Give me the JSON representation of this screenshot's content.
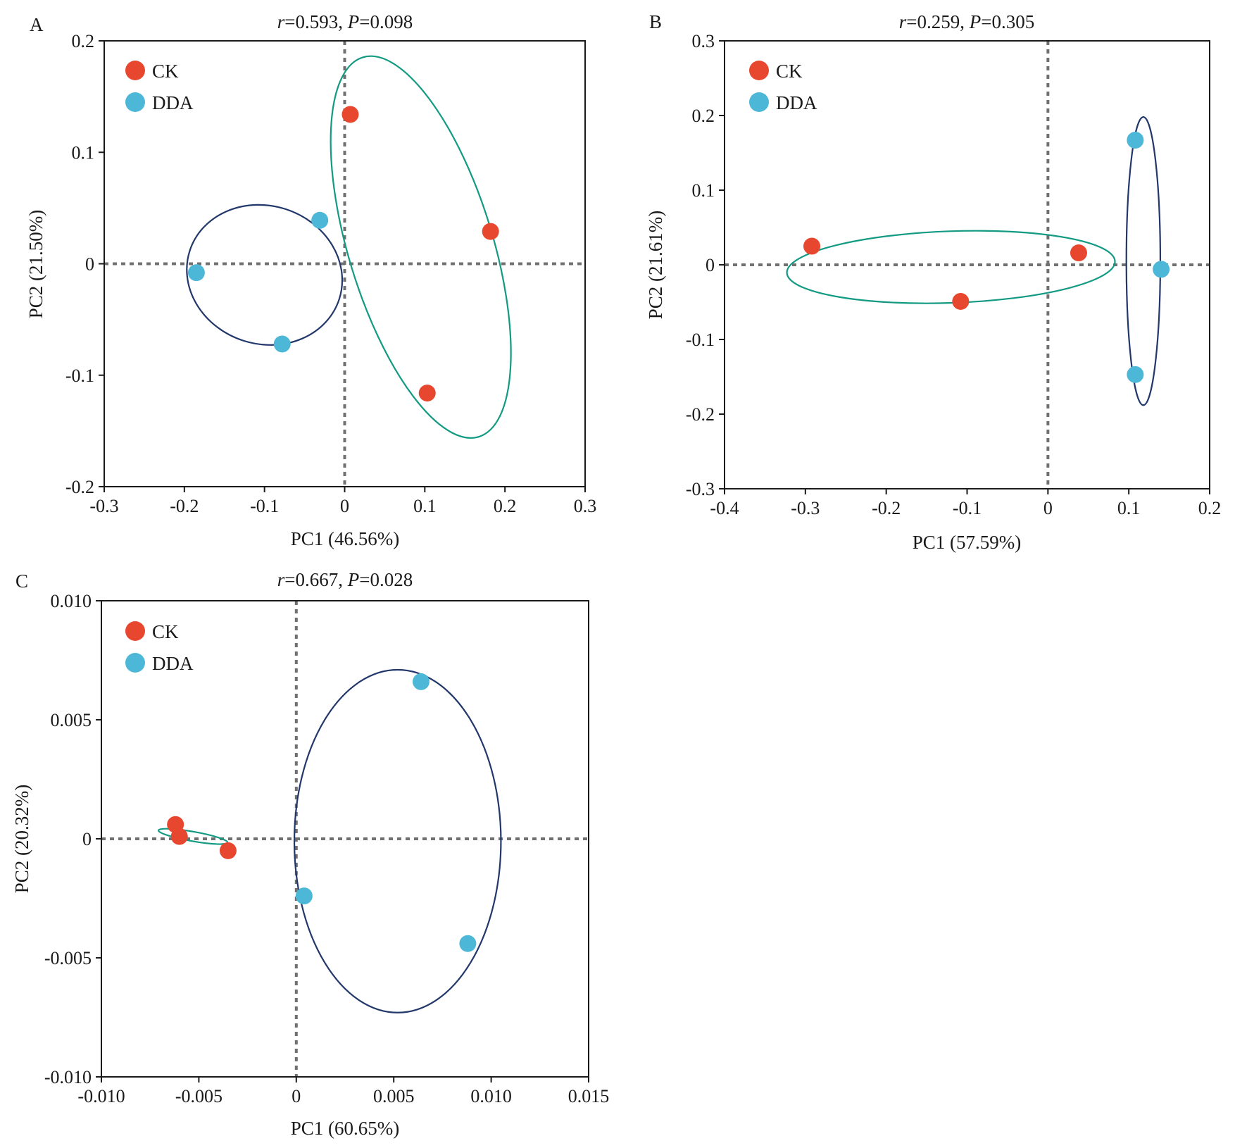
{
  "chart_data": [
    {
      "panel": "A",
      "type": "scatter",
      "title": {
        "r_label": "r",
        "r_value": "=0.593, ",
        "p_label": "P",
        "p_value": "=0.098"
      },
      "xlabel": "PC1 (46.56%)",
      "ylabel": "PC2 (21.50%)",
      "xlim": [
        -0.3,
        0.3
      ],
      "ylim": [
        -0.2,
        0.2
      ],
      "xticks": [
        -0.3,
        -0.2,
        -0.1,
        0,
        0.1,
        0.2,
        0.3
      ],
      "xtick_labels": [
        "-0.3",
        "-0.2",
        "-0.1",
        "0",
        "0.1",
        "0.2",
        "0.3"
      ],
      "yticks": [
        -0.2,
        -0.1,
        0,
        0.1,
        0.2
      ],
      "ytick_labels": [
        "-0.2",
        "-0.1",
        "0",
        "0.1",
        "0.2"
      ],
      "reference_lines": {
        "x": 0,
        "y": 0
      },
      "legend": {
        "position": "top-left",
        "items": [
          "CK",
          "DDA"
        ]
      },
      "series": [
        {
          "name": "CK",
          "color": "#e8472f",
          "x": [
            0.007,
            0.182,
            0.103
          ],
          "y": [
            0.134,
            0.029,
            -0.116
          ],
          "ellipse": {
            "color": "#129a82",
            "cx": 0.095,
            "cy": 0.015,
            "rx": 0.09,
            "ry": 0.178,
            "angle": -17
          }
        },
        {
          "name": "DDA",
          "color": "#4cb7d6",
          "x": [
            -0.031,
            -0.185,
            -0.078
          ],
          "y": [
            0.039,
            -0.008,
            -0.072
          ],
          "ellipse": {
            "color": "#22386b",
            "cx": -0.1,
            "cy": -0.01,
            "rx": 0.098,
            "ry": 0.062,
            "angle": 18
          }
        }
      ]
    },
    {
      "panel": "B",
      "type": "scatter",
      "title": {
        "r_label": "r",
        "r_value": "=0.259, ",
        "p_label": "P",
        "p_value": "=0.305"
      },
      "xlabel": "PC1 (57.59%)",
      "ylabel": "PC2 (21.61%)",
      "xlim": [
        -0.4,
        0.2
      ],
      "ylim": [
        -0.3,
        0.3
      ],
      "xticks": [
        -0.4,
        -0.3,
        -0.2,
        -0.1,
        0,
        0.1,
        0.2
      ],
      "xtick_labels": [
        "-0.4",
        "-0.3",
        "-0.2",
        "-0.1",
        "0",
        "0.1",
        "0.2"
      ],
      "yticks": [
        -0.3,
        -0.2,
        -0.1,
        0,
        0.1,
        0.2,
        0.3
      ],
      "ytick_labels": [
        "-0.3",
        "-0.2",
        "-0.1",
        "0",
        "0.1",
        "0.2",
        "0.3"
      ],
      "reference_lines": {
        "x": 0,
        "y": 0
      },
      "legend": {
        "position": "top-left",
        "items": [
          "CK",
          "DDA"
        ]
      },
      "series": [
        {
          "name": "CK",
          "color": "#e8472f",
          "x": [
            -0.292,
            -0.108,
            0.038
          ],
          "y": [
            0.025,
            -0.049,
            0.016
          ],
          "ellipse": {
            "color": "#129a82",
            "cx": -0.12,
            "cy": -0.003,
            "rx": 0.203,
            "ry": 0.048,
            "angle": -2
          }
        },
        {
          "name": "DDA",
          "color": "#4cb7d6",
          "x": [
            0.108,
            0.14,
            0.108
          ],
          "y": [
            0.167,
            -0.006,
            -0.147
          ],
          "ellipse": {
            "color": "#22386b",
            "cx": 0.118,
            "cy": 0.005,
            "rx": 0.021,
            "ry": 0.193,
            "angle": 0
          }
        }
      ]
    },
    {
      "panel": "C",
      "type": "scatter",
      "title": {
        "r_label": "r",
        "r_value": "=0.667, ",
        "p_label": "P",
        "p_value": "=0.028"
      },
      "xlabel": "PC1 (60.65%)",
      "ylabel": "PC2 (20.32%)",
      "xlim": [
        -0.01,
        0.015
      ],
      "ylim": [
        -0.01,
        0.01
      ],
      "xticks": [
        -0.01,
        -0.005,
        0,
        0.005,
        0.01,
        0.015
      ],
      "xtick_labels": [
        "-0.010",
        "-0.005",
        "0",
        "0.005",
        "0.010",
        "0.015"
      ],
      "yticks": [
        -0.01,
        -0.005,
        0,
        0.005,
        0.01
      ],
      "ytick_labels": [
        "-0.010",
        "-0.005",
        "0",
        "0.005",
        "0.010"
      ],
      "reference_lines": {
        "x": 0,
        "y": 0
      },
      "legend": {
        "position": "top-left",
        "items": [
          "CK",
          "DDA"
        ]
      },
      "series": [
        {
          "name": "CK",
          "color": "#e8472f",
          "x": [
            -0.0062,
            -0.006,
            -0.0035
          ],
          "y": [
            0.0006,
            0.0001,
            -0.0005
          ],
          "ellipse": {
            "color": "#129a82",
            "cx": -0.0053,
            "cy": 0.0001,
            "rx": 0.0018,
            "ry": 0.0002,
            "angle": 10
          }
        },
        {
          "name": "DDA",
          "color": "#4cb7d6",
          "x": [
            0.0064,
            0.0004,
            0.0088
          ],
          "y": [
            0.0066,
            -0.0024,
            -0.0044
          ],
          "ellipse": {
            "color": "#22386b",
            "cx": 0.0052,
            "cy": -0.0001,
            "rx": 0.0053,
            "ry": 0.0072,
            "angle": 0
          }
        }
      ]
    }
  ]
}
